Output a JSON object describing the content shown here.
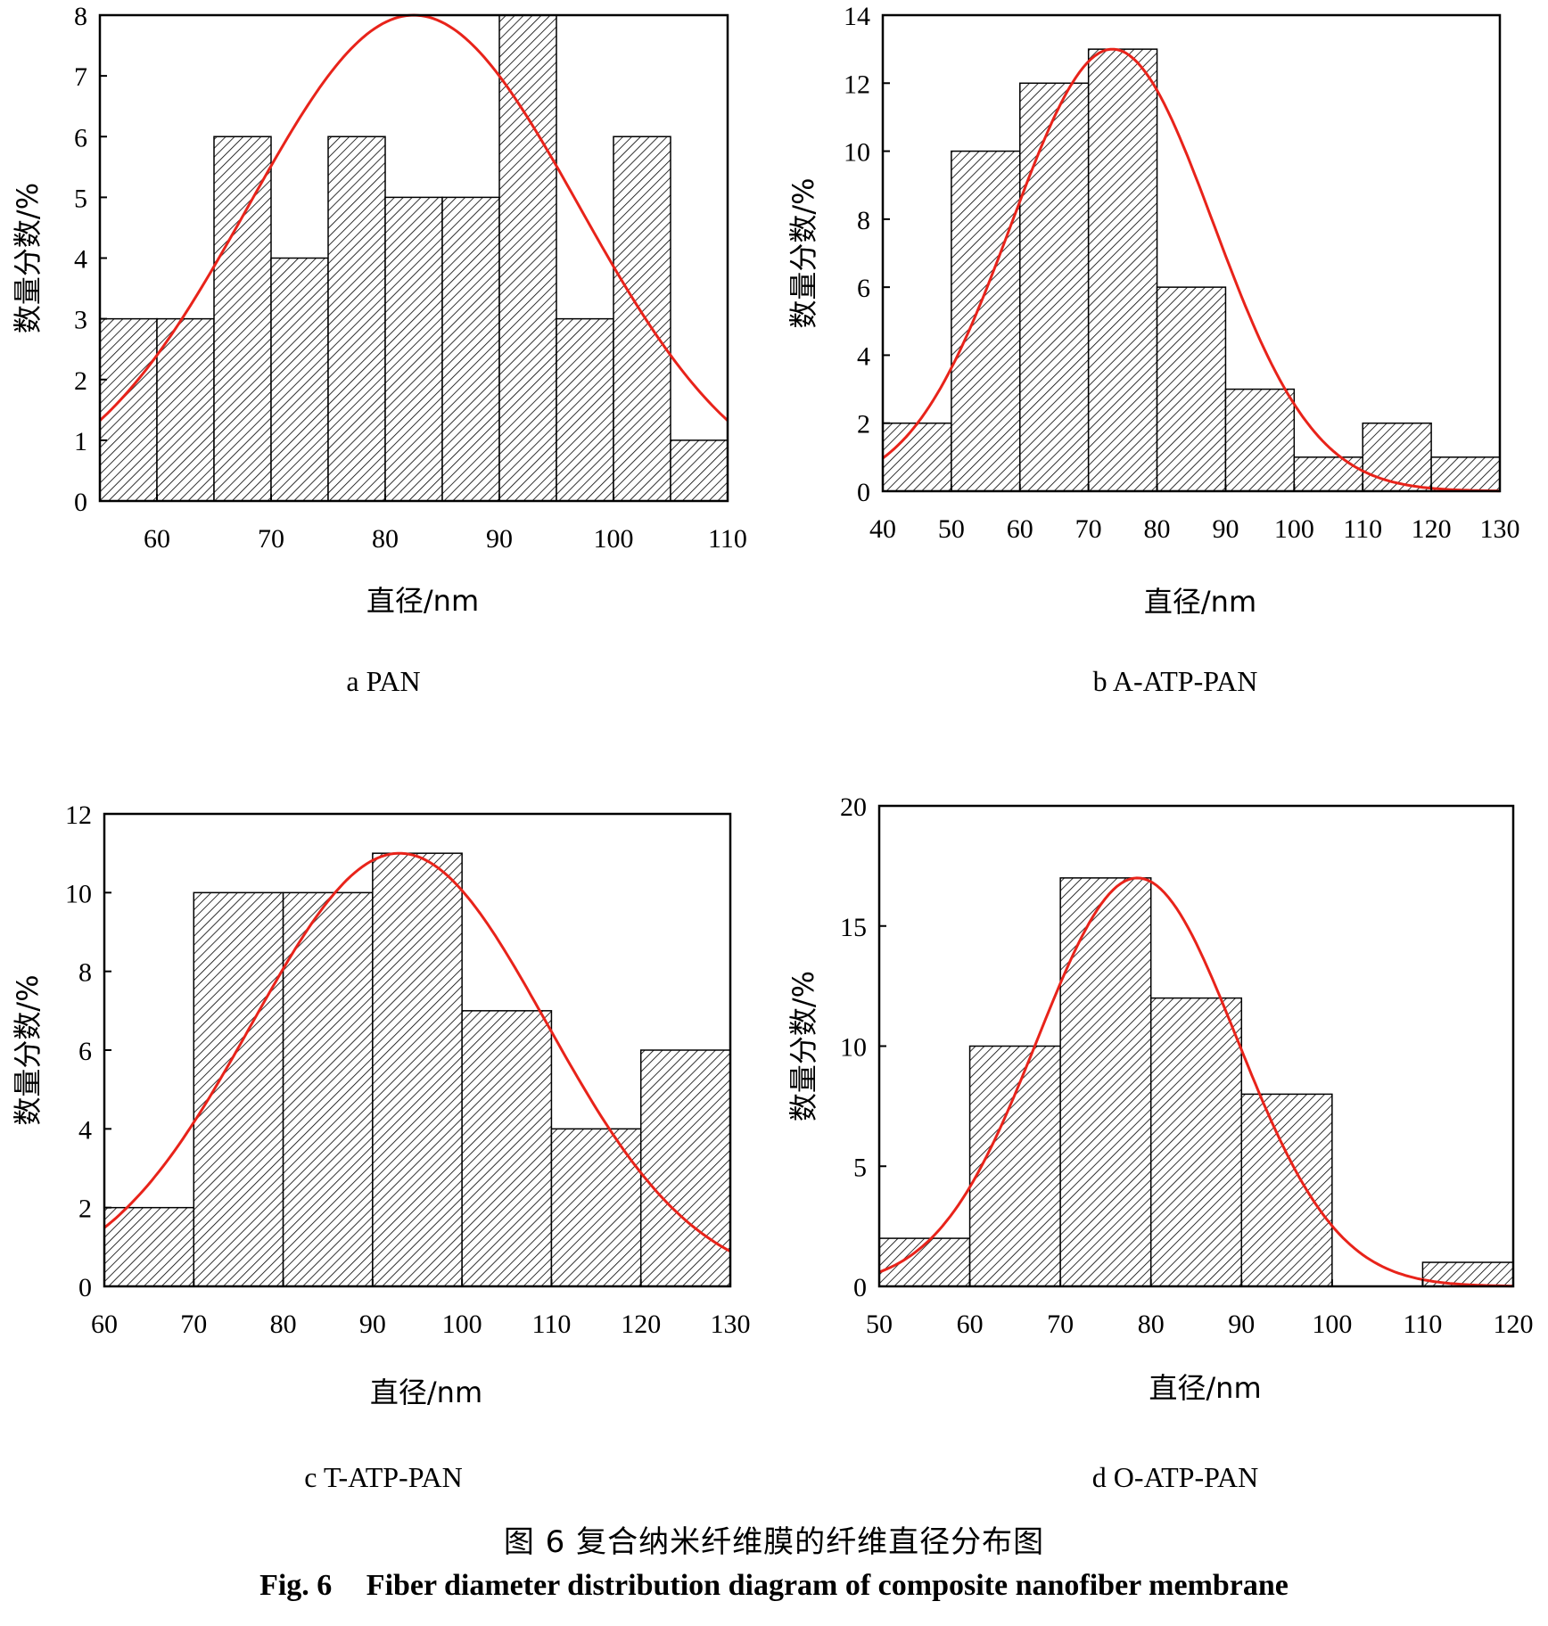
{
  "figure": {
    "caption_zh": "图 6   复合纳米纤维膜的纤维直径分布图",
    "caption_en_label": "Fig. 6",
    "caption_en_text": "Fiber diameter distribution diagram of composite nanofiber membrane"
  },
  "colors": {
    "curve": "#e8231a",
    "bar_fill": "#ffffff",
    "hatch": "#000000"
  },
  "chart_data": [
    {
      "type": "bar",
      "title": "a PAN",
      "xlabel": "直径/nm",
      "ylabel": "数量分数/%",
      "xlim": [
        55,
        110
      ],
      "ylim": [
        0,
        8
      ],
      "xticks": [
        60,
        70,
        80,
        90,
        100,
        110
      ],
      "yticks": [
        0,
        1,
        2,
        3,
        4,
        5,
        6,
        7,
        8
      ],
      "bins": [
        {
          "x0": 55,
          "x1": 60,
          "value": 3
        },
        {
          "x0": 60,
          "x1": 65,
          "value": 3
        },
        {
          "x0": 65,
          "x1": 70,
          "value": 6
        },
        {
          "x0": 70,
          "x1": 75,
          "value": 4
        },
        {
          "x0": 75,
          "x1": 80,
          "value": 6
        },
        {
          "x0": 80,
          "x1": 85,
          "value": 5
        },
        {
          "x0": 85,
          "x1": 90,
          "value": 5
        },
        {
          "x0": 90,
          "x1": 95,
          "value": 8
        },
        {
          "x0": 95,
          "x1": 100,
          "value": 3
        },
        {
          "x0": 100,
          "x1": 105,
          "value": 6
        },
        {
          "x0": 105,
          "x1": 110,
          "value": 1
        }
      ],
      "fit": {
        "type": "gaussian",
        "peak": 8.0,
        "mean": 82.5,
        "sd": 14.5
      },
      "grid": false
    },
    {
      "type": "bar",
      "title": "b A-ATP-PAN",
      "xlabel": "直径/nm",
      "ylabel": "数量分数/%",
      "xlim": [
        40,
        130
      ],
      "ylim": [
        0,
        14
      ],
      "xticks": [
        40,
        50,
        60,
        70,
        80,
        90,
        100,
        110,
        120,
        130
      ],
      "yticks": [
        0,
        2,
        4,
        6,
        8,
        10,
        12,
        14
      ],
      "bins": [
        {
          "x0": 40,
          "x1": 50,
          "value": 2
        },
        {
          "x0": 50,
          "x1": 60,
          "value": 10
        },
        {
          "x0": 60,
          "x1": 70,
          "value": 12
        },
        {
          "x0": 70,
          "x1": 80,
          "value": 13
        },
        {
          "x0": 80,
          "x1": 90,
          "value": 6
        },
        {
          "x0": 90,
          "x1": 100,
          "value": 3
        },
        {
          "x0": 100,
          "x1": 110,
          "value": 1
        },
        {
          "x0": 110,
          "x1": 120,
          "value": 2
        },
        {
          "x0": 120,
          "x1": 130,
          "value": 1
        }
      ],
      "fit": {
        "type": "gaussian",
        "peak": 13.0,
        "mean": 73.5,
        "sd": 14.7
      },
      "grid": false
    },
    {
      "type": "bar",
      "title": "c T-ATP-PAN",
      "xlabel": "直径/nm",
      "ylabel": "数量分数/%",
      "xlim": [
        60,
        130
      ],
      "ylim": [
        0,
        12
      ],
      "xticks": [
        60,
        70,
        80,
        90,
        100,
        110,
        120,
        130
      ],
      "yticks": [
        0,
        2,
        4,
        6,
        8,
        10,
        12
      ],
      "bins": [
        {
          "x0": 60,
          "x1": 70,
          "value": 2
        },
        {
          "x0": 70,
          "x1": 80,
          "value": 10
        },
        {
          "x0": 80,
          "x1": 90,
          "value": 10
        },
        {
          "x0": 90,
          "x1": 100,
          "value": 11
        },
        {
          "x0": 100,
          "x1": 110,
          "value": 7
        },
        {
          "x0": 110,
          "x1": 120,
          "value": 4
        },
        {
          "x0": 120,
          "x1": 130,
          "value": 6
        }
      ],
      "fit": {
        "type": "gaussian",
        "peak": 11.0,
        "mean": 93.0,
        "sd": 16.5
      },
      "grid": false
    },
    {
      "type": "bar",
      "title": "d O-ATP-PAN",
      "xlabel": "直径/nm",
      "ylabel": "数量分数/%",
      "xlim": [
        50,
        120
      ],
      "ylim": [
        0,
        20
      ],
      "xticks": [
        50,
        60,
        70,
        80,
        90,
        100,
        110,
        120
      ],
      "yticks": [
        0,
        5,
        10,
        15,
        20
      ],
      "bins": [
        {
          "x0": 50,
          "x1": 60,
          "value": 2
        },
        {
          "x0": 60,
          "x1": 70,
          "value": 10
        },
        {
          "x0": 70,
          "x1": 80,
          "value": 17
        },
        {
          "x0": 80,
          "x1": 90,
          "value": 12
        },
        {
          "x0": 90,
          "x1": 100,
          "value": 8
        },
        {
          "x0": 110,
          "x1": 120,
          "value": 1
        }
      ],
      "fit": {
        "type": "gaussian",
        "peak": 17.0,
        "mean": 78.5,
        "sd": 11.0
      },
      "grid": false
    }
  ]
}
